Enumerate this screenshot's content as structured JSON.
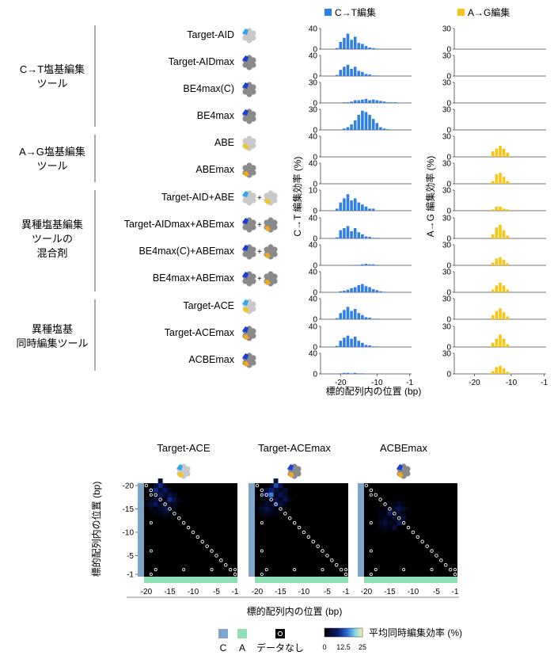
{
  "legend_top": {
    "ct": "C→T編集",
    "ag": "A→G編集"
  },
  "colors": {
    "ct_bar": "#2f7fe6",
    "ag_bar": "#f5c518",
    "c_strip": "#7ea6c8",
    "a_strip": "#8ee0b4",
    "dot": "#ffffff"
  },
  "groups": [
    {
      "label": [
        "C→T塩基編集",
        "ツール"
      ]
    },
    {
      "label": [
        "A→G塩基編集",
        "ツール"
      ]
    },
    {
      "label": [
        "異種塩基編集",
        "ツールの",
        "混合剤"
      ]
    },
    {
      "label": [
        "異種塩基",
        "同時編集ツール"
      ]
    }
  ],
  "tools": [
    {
      "name": "Target-AID",
      "icon": "aid"
    },
    {
      "name": "Target-AIDmax",
      "icon": "aidmax"
    },
    {
      "name": "BE4max(C)",
      "icon": "be4c"
    },
    {
      "name": "BE4max",
      "icon": "be4"
    },
    {
      "name": "ABE",
      "icon": "abe"
    },
    {
      "name": "ABEmax",
      "icon": "abemax"
    },
    {
      "name": "Target-AID+ABE",
      "icon": "mix1"
    },
    {
      "name": "Target-AIDmax+ABEmax",
      "icon": "mix2"
    },
    {
      "name": "BE4max(C)+ABEmax",
      "icon": "mix3"
    },
    {
      "name": "BE4max+ABEmax",
      "icon": "mix4"
    },
    {
      "name": "Target-ACE",
      "icon": "ace"
    },
    {
      "name": "Target-ACEmax",
      "icon": "acemax"
    },
    {
      "name": "ACBEmax",
      "icon": "acbe"
    }
  ],
  "chart_data": [
    {
      "type": "bar",
      "name": "ct_panels",
      "ylabel": "C→T 編集効率 (%)",
      "xlabel": "標的配列内の位置 (bp)",
      "x": [
        -25,
        -24,
        -23,
        -22,
        -21,
        -20,
        -19,
        -18,
        -17,
        -16,
        -15,
        -14,
        -13,
        -12,
        -11,
        -10,
        -9,
        -8,
        -7,
        -6,
        -5,
        -4,
        -3,
        -2,
        -1
      ],
      "xticks": [
        -20,
        -10,
        -1
      ],
      "yticks": [
        [
          0,
          40
        ],
        [
          0,
          40
        ],
        [
          0,
          30
        ],
        [
          0,
          30
        ],
        [
          0,
          40
        ],
        [
          0,
          40
        ],
        [
          0,
          10
        ],
        [
          0,
          40
        ],
        [
          0,
          40
        ],
        [
          0,
          40
        ],
        [
          0,
          40
        ],
        [
          0,
          40
        ],
        [
          0,
          40
        ]
      ],
      "ylim": [
        [
          0,
          40
        ],
        [
          0,
          40
        ],
        [
          0,
          30
        ],
        [
          0,
          30
        ],
        [
          0,
          40
        ],
        [
          0,
          40
        ],
        [
          0,
          10
        ],
        [
          0,
          40
        ],
        [
          0,
          40
        ],
        [
          0,
          40
        ],
        [
          0,
          40
        ],
        [
          0,
          40
        ],
        [
          0,
          40
        ]
      ],
      "series": [
        {
          "values": [
            0,
            0,
            0,
            0,
            2,
            14,
            22,
            30,
            18,
            24,
            12,
            10,
            6,
            3,
            2,
            1,
            0,
            0,
            0,
            0,
            0,
            0,
            0,
            0,
            0
          ]
        },
        {
          "values": [
            0,
            0,
            0,
            0,
            2,
            12,
            18,
            22,
            14,
            18,
            10,
            8,
            4,
            3,
            1,
            1,
            0,
            0,
            0,
            0,
            0,
            0,
            0,
            0,
            0
          ]
        },
        {
          "values": [
            0,
            0,
            0,
            0,
            0,
            0,
            1,
            1,
            2,
            4,
            4,
            5,
            6,
            4,
            5,
            4,
            3,
            2,
            1,
            1,
            1,
            0,
            0,
            0,
            0
          ]
        },
        {
          "values": [
            0,
            0,
            0,
            0,
            0,
            0,
            2,
            4,
            8,
            14,
            22,
            28,
            26,
            22,
            16,
            10,
            4,
            2,
            1,
            0,
            0,
            0,
            0,
            0,
            0
          ]
        },
        {
          "values": [
            0,
            0,
            0,
            0,
            0,
            0,
            0,
            0,
            0,
            0,
            0,
            0,
            0,
            0,
            0,
            0,
            0,
            0,
            0,
            0,
            0,
            0,
            0,
            0,
            0
          ]
        },
        {
          "values": [
            0,
            0,
            0,
            0,
            0,
            0,
            0,
            0,
            0,
            0,
            0,
            0,
            0,
            0,
            0,
            0,
            0,
            0,
            0,
            0,
            0,
            0,
            0,
            0,
            0
          ]
        },
        {
          "values": [
            0,
            0,
            0,
            0,
            1,
            4,
            6,
            8,
            5,
            6,
            4,
            3,
            2,
            1,
            1,
            0,
            0,
            0,
            0,
            0,
            0,
            0,
            0,
            0,
            0
          ]
        },
        {
          "values": [
            0,
            0,
            0,
            0,
            2,
            16,
            20,
            24,
            14,
            20,
            12,
            8,
            4,
            3,
            1,
            1,
            0,
            0,
            0,
            0,
            0,
            0,
            0,
            0,
            0
          ]
        },
        {
          "values": [
            0,
            0,
            0,
            0,
            0,
            0,
            0,
            0,
            0,
            1,
            1,
            2,
            3,
            2,
            2,
            1,
            0,
            0,
            0,
            0,
            0,
            0,
            0,
            0,
            0
          ]
        },
        {
          "values": [
            0,
            0,
            0,
            0,
            0,
            2,
            3,
            5,
            8,
            10,
            14,
            16,
            12,
            10,
            6,
            4,
            2,
            1,
            0,
            0,
            0,
            0,
            0,
            0,
            0
          ]
        },
        {
          "values": [
            0,
            0,
            0,
            0,
            2,
            12,
            18,
            24,
            16,
            20,
            12,
            8,
            4,
            3,
            1,
            1,
            0,
            0,
            0,
            0,
            0,
            0,
            0,
            0,
            0
          ]
        },
        {
          "values": [
            0,
            0,
            0,
            0,
            2,
            12,
            18,
            22,
            16,
            20,
            12,
            8,
            4,
            3,
            1,
            1,
            0,
            0,
            0,
            0,
            0,
            0,
            0,
            0,
            0
          ]
        },
        {
          "values": [
            0,
            0,
            0,
            0,
            0,
            1,
            2,
            2,
            1,
            2,
            1,
            1,
            0,
            0,
            0,
            0,
            0,
            0,
            0,
            0,
            0,
            0,
            0,
            0,
            0
          ]
        }
      ]
    },
    {
      "type": "bar",
      "name": "ag_panels",
      "ylabel": "A→G 編集効率 (%)",
      "xlabel": "",
      "x": [
        -25,
        -24,
        -23,
        -22,
        -21,
        -20,
        -19,
        -18,
        -17,
        -16,
        -15,
        -14,
        -13,
        -12,
        -11,
        -10,
        -9,
        -8,
        -7,
        -6,
        -5,
        -4,
        -3,
        -2,
        -1
      ],
      "xticks": [
        -20,
        -10,
        -1
      ],
      "yticks": [
        [
          0,
          30
        ],
        [
          0,
          30
        ],
        [
          0,
          30
        ],
        [
          0,
          30
        ],
        [
          0,
          30
        ],
        [
          0,
          30
        ],
        [
          0,
          30
        ],
        [
          0,
          30
        ],
        [
          0,
          30
        ],
        [
          0,
          30
        ],
        [
          0,
          30
        ],
        [
          0,
          30
        ],
        [
          0,
          30
        ]
      ],
      "ylim": [
        [
          0,
          30
        ],
        [
          0,
          30
        ],
        [
          0,
          30
        ],
        [
          0,
          30
        ],
        [
          0,
          30
        ],
        [
          0,
          30
        ],
        [
          0,
          30
        ],
        [
          0,
          30
        ],
        [
          0,
          30
        ],
        [
          0,
          30
        ],
        [
          0,
          30
        ],
        [
          0,
          30
        ],
        [
          0,
          30
        ]
      ],
      "series": [
        {
          "values": [
            0,
            0,
            0,
            0,
            0,
            0,
            0,
            0,
            0,
            0,
            0,
            0,
            0,
            0,
            0,
            0,
            0,
            0,
            0,
            0,
            0,
            0,
            0,
            0,
            0
          ]
        },
        {
          "values": [
            0,
            0,
            0,
            0,
            0,
            0,
            0,
            0,
            0,
            0,
            0,
            0,
            0,
            0,
            0,
            0,
            0,
            0,
            0,
            0,
            0,
            0,
            0,
            0,
            0
          ]
        },
        {
          "values": [
            0,
            0,
            0,
            0,
            0,
            0,
            0,
            0,
            0,
            0,
            0,
            0,
            0,
            0,
            0,
            0,
            0,
            0,
            0,
            0,
            0,
            0,
            0,
            0,
            0
          ]
        },
        {
          "values": [
            0,
            0,
            0,
            0,
            0,
            0,
            0,
            0,
            0,
            0,
            0,
            0,
            0,
            0,
            0,
            0,
            0,
            0,
            0,
            0,
            0,
            0,
            0,
            0,
            0
          ]
        },
        {
          "values": [
            0,
            0,
            0,
            0,
            0,
            0,
            0,
            0,
            0,
            0,
            8,
            12,
            16,
            12,
            6,
            0,
            0,
            0,
            0,
            0,
            0,
            0,
            0,
            0,
            0
          ]
        },
        {
          "values": [
            0,
            0,
            0,
            0,
            0,
            0,
            0,
            0,
            0,
            0,
            4,
            14,
            16,
            10,
            4,
            0,
            0,
            0,
            0,
            0,
            0,
            0,
            0,
            0,
            0
          ]
        },
        {
          "values": [
            0,
            0,
            0,
            0,
            0,
            0,
            0,
            0,
            0,
            0,
            2,
            6,
            6,
            3,
            2,
            0,
            0,
            0,
            0,
            0,
            0,
            0,
            0,
            0,
            0
          ]
        },
        {
          "values": [
            0,
            0,
            0,
            0,
            0,
            0,
            0,
            0,
            0,
            0,
            6,
            16,
            20,
            12,
            4,
            0,
            0,
            0,
            0,
            0,
            0,
            0,
            0,
            0,
            0
          ]
        },
        {
          "values": [
            0,
            0,
            0,
            0,
            0,
            0,
            0,
            0,
            0,
            0,
            4,
            10,
            12,
            8,
            3,
            0,
            0,
            0,
            0,
            0,
            0,
            0,
            0,
            0,
            0
          ]
        },
        {
          "values": [
            0,
            0,
            0,
            0,
            0,
            0,
            0,
            0,
            0,
            0,
            4,
            10,
            14,
            10,
            4,
            0,
            0,
            0,
            0,
            0,
            0,
            0,
            0,
            0,
            0
          ]
        },
        {
          "values": [
            0,
            0,
            0,
            0,
            0,
            0,
            0,
            0,
            0,
            0,
            6,
            12,
            16,
            10,
            4,
            0,
            0,
            0,
            0,
            0,
            0,
            0,
            0,
            0,
            0
          ]
        },
        {
          "values": [
            0,
            0,
            0,
            0,
            0,
            0,
            0,
            0,
            0,
            0,
            6,
            12,
            18,
            12,
            4,
            0,
            0,
            0,
            0,
            0,
            0,
            0,
            0,
            0,
            0
          ]
        },
        {
          "values": [
            0,
            0,
            0,
            0,
            0,
            0,
            0,
            0,
            0,
            0,
            4,
            10,
            12,
            8,
            3,
            0,
            0,
            0,
            0,
            0,
            0,
            0,
            0,
            0,
            0
          ]
        }
      ]
    },
    {
      "type": "heatmap",
      "name": "co_editing",
      "titles": [
        "Target-ACE",
        "Target-ACEmax",
        "ACBEmax"
      ],
      "xlabel": "標的配列内の位置 (bp)",
      "ylabel": "標的配列内の位置 (bp)",
      "xticks": [
        -20,
        -15,
        -10,
        -5,
        -1
      ],
      "yticks": [
        -20,
        -15,
        -10,
        -5,
        -1
      ],
      "colorbar": {
        "label": "平均同時編集効率 (%)",
        "ticks": [
          "0",
          "12.5",
          "25"
        ],
        "range": [
          0,
          25
        ]
      },
      "hotspots": [
        [
          {
            "x": -17,
            "y": -19,
            "v": 18
          },
          {
            "x": -16,
            "y": -18,
            "v": 14
          },
          {
            "x": -15,
            "y": -17,
            "v": 10
          },
          {
            "x": -18,
            "y": -16,
            "v": 8
          },
          {
            "x": -16,
            "y": -15,
            "v": 6
          }
        ],
        [
          {
            "x": -16,
            "y": -19,
            "v": 22
          },
          {
            "x": -17,
            "y": -18,
            "v": 16
          },
          {
            "x": -15,
            "y": -17,
            "v": 12
          },
          {
            "x": -16,
            "y": -16,
            "v": 9
          },
          {
            "x": -18,
            "y": -15,
            "v": 6
          }
        ],
        [
          {
            "x": -14,
            "y": -13,
            "v": 25
          },
          {
            "x": -15,
            "y": -14,
            "v": 8
          },
          {
            "x": -13,
            "y": -15,
            "v": 6
          },
          {
            "x": -16,
            "y": -12,
            "v": 5
          }
        ]
      ]
    }
  ],
  "bottom_legend": {
    "c_label": "C",
    "a_label": "A",
    "nodata_label": "データなし"
  }
}
